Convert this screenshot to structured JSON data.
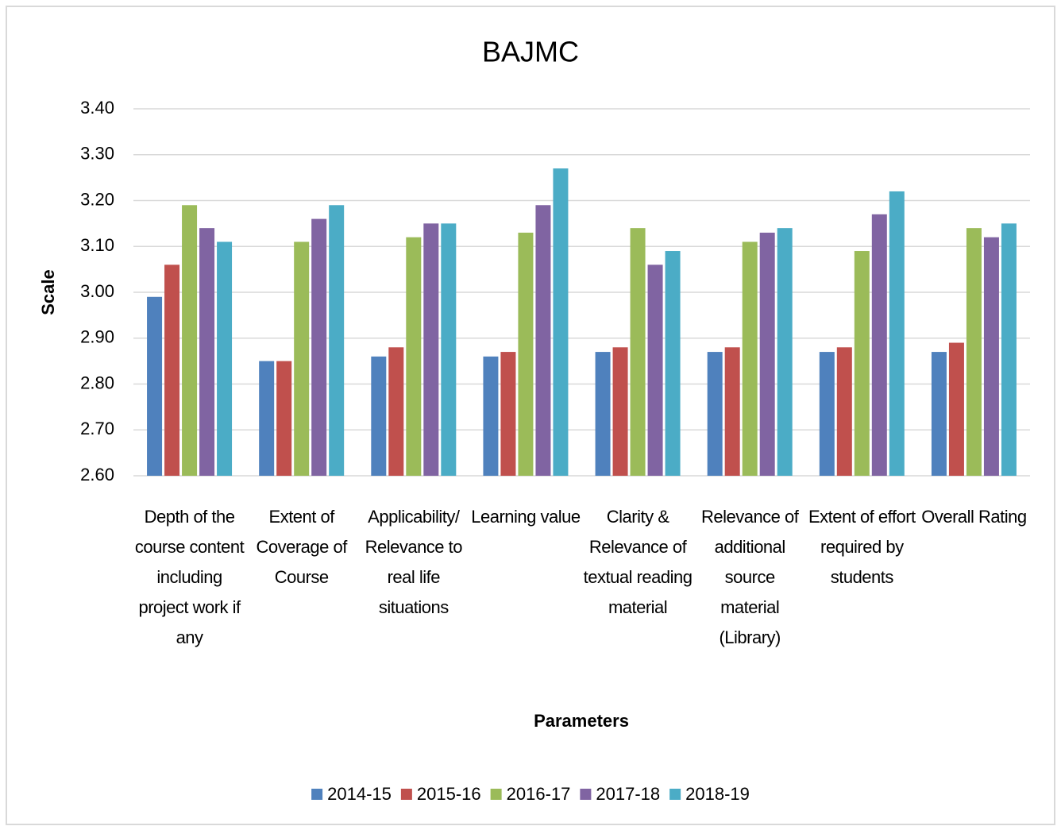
{
  "chart_data": {
    "type": "bar",
    "title": "BAJMC",
    "x_label": "Parameters",
    "y_label": "Scale",
    "categories": [
      "Depth of the course content including project work if any",
      "Extent of Coverage of Course",
      "Applicability/ Relevance to real life situations",
      "Learning value",
      "Clarity & Relevance of textual reading material",
      "Relevance of additional source material (Library)",
      "Extent of effort required by students",
      "Overall Rating"
    ],
    "series": [
      {
        "name": "2014-15",
        "color": "#4f81bd",
        "values": [
          2.99,
          2.85,
          2.86,
          2.86,
          2.87,
          2.87,
          2.87,
          2.87
        ]
      },
      {
        "name": "2015-16",
        "color": "#c0504d",
        "values": [
          3.06,
          2.85,
          2.88,
          2.87,
          2.88,
          2.88,
          2.88,
          2.89
        ]
      },
      {
        "name": "2016-17",
        "color": "#9bbb59",
        "values": [
          3.19,
          3.11,
          3.12,
          3.13,
          3.14,
          3.11,
          3.09,
          3.14
        ]
      },
      {
        "name": "2017-18",
        "color": "#8064a2",
        "values": [
          3.14,
          3.16,
          3.15,
          3.19,
          3.06,
          3.13,
          3.17,
          3.12
        ]
      },
      {
        "name": "2018-19",
        "color": "#4bacc6",
        "values": [
          3.11,
          3.19,
          3.15,
          3.27,
          3.09,
          3.14,
          3.22,
          3.15
        ]
      }
    ],
    "ylim": [
      2.6,
      3.4
    ],
    "yticks": [
      {
        "value": 2.6,
        "label": "2.60"
      },
      {
        "value": 2.7,
        "label": "2.70"
      },
      {
        "value": 2.8,
        "label": "2.80"
      },
      {
        "value": 2.9,
        "label": "2.90"
      },
      {
        "value": 3.0,
        "label": "3.00"
      },
      {
        "value": 3.1,
        "label": "3.10"
      },
      {
        "value": 3.2,
        "label": "3.20"
      },
      {
        "value": 3.3,
        "label": "3.30"
      },
      {
        "value": 3.4,
        "label": "3.40"
      }
    ],
    "grid": true,
    "legend": "bottom"
  }
}
